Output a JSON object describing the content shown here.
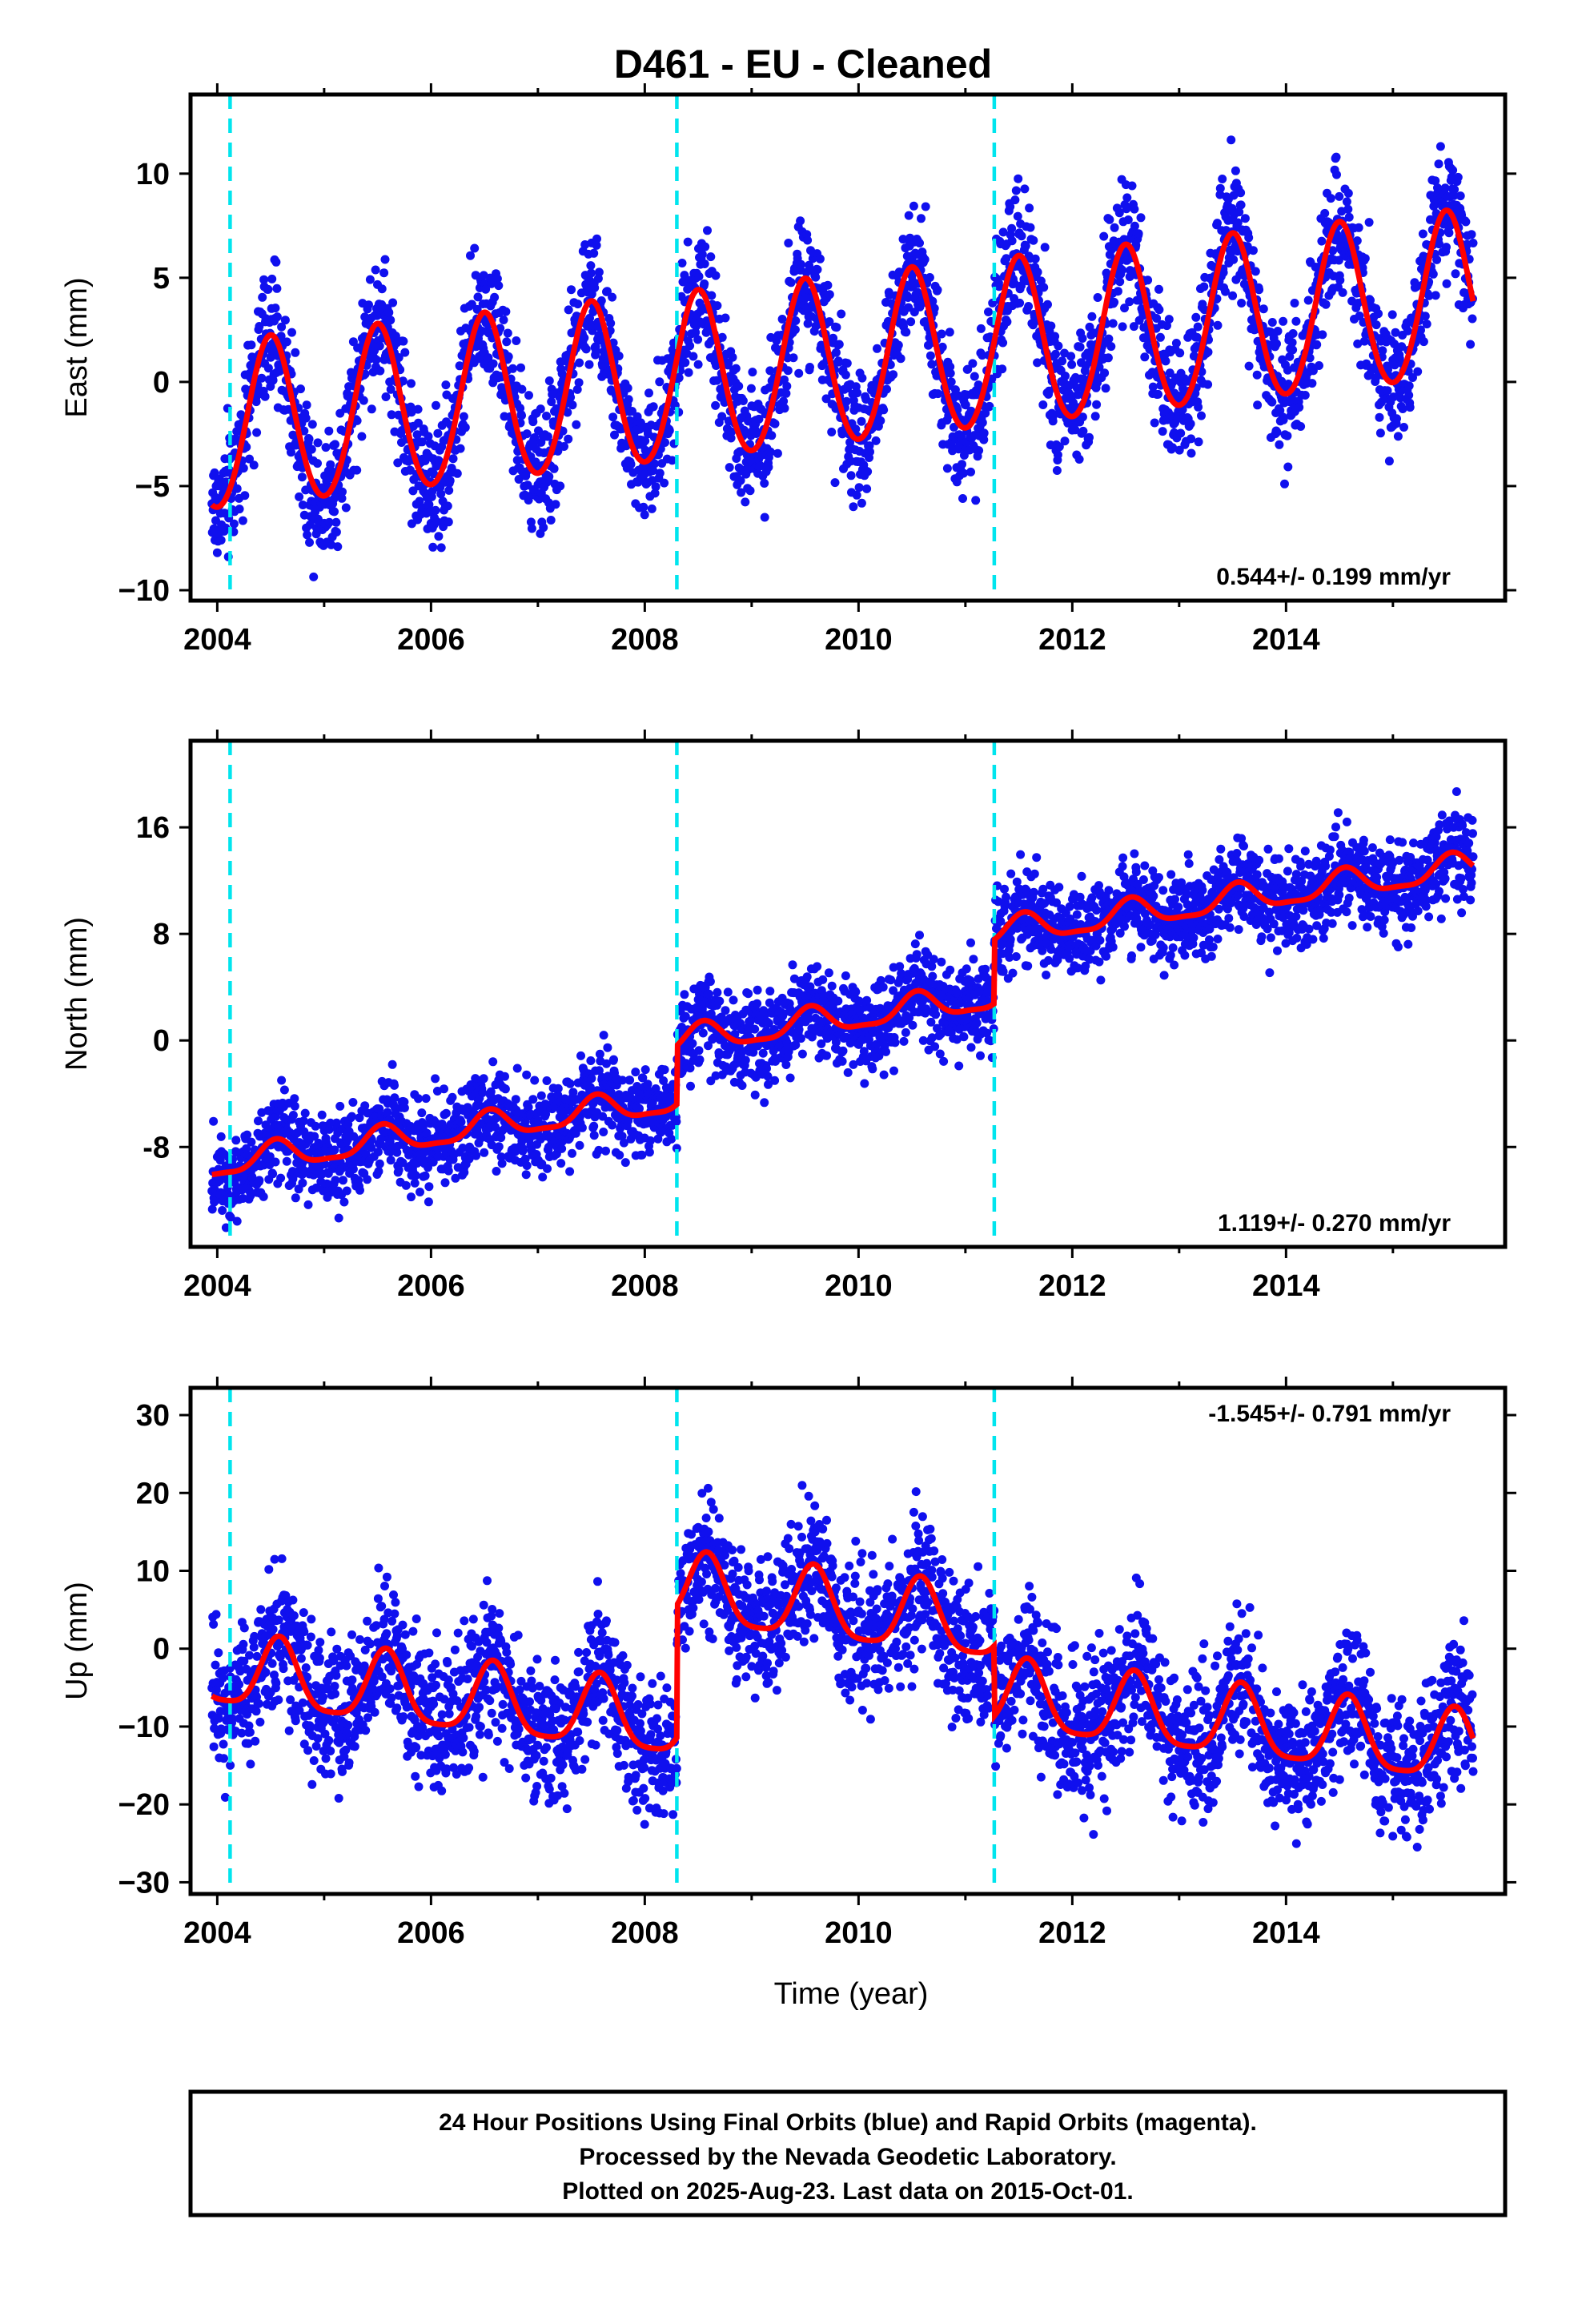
{
  "title": "D461  - EU - Cleaned",
  "xlabel": "Time (year)",
  "colors": {
    "points": "#1010ee",
    "model": "#ff0000",
    "breaks": "#00e5ee",
    "frame": "#000000"
  },
  "footer": {
    "line1": "24 Hour Positions Using Final Orbits (blue) and Rapid Orbits (magenta).",
    "line2": "Processed by the Nevada Geodetic Laboratory.",
    "line3": "Plotted on 2025-Aug-23. Last data on 2015-Oct-01."
  },
  "chart_data": [
    {
      "type": "scatter",
      "name": "east",
      "ylabel": "East (mm)",
      "rate_label": "0.544+/- 0.199 mm/yr",
      "rate_position": "bottom-right",
      "xlim": [
        2003.75,
        2016.05
      ],
      "ylim": [
        -10.5,
        13.8
      ],
      "xticks": [
        2004,
        2006,
        2008,
        2010,
        2012,
        2014
      ],
      "yticks": [
        -10,
        -5,
        0,
        5,
        10
      ],
      "ytick_labels": [
        "−10",
        "−5",
        "0",
        "5",
        "10"
      ],
      "steps": [
        2004.12,
        2008.3,
        2011.27
      ],
      "trend": {
        "x0": 2010.0,
        "a0": 1.0,
        "rate": 0.544,
        "offsets": [
          0,
          0,
          0
        ],
        "annual_amp": 4.0,
        "annual_peak": 0.5,
        "semi_amp": 0.25,
        "scatter": 1.6
      },
      "series": [
        {
          "name": "24 Hour Positions Using Final Orbits (blue)",
          "kind": "points",
          "x_range": [
            2003.95,
            2015.75
          ],
          "count": 3300
        },
        {
          "name": "model",
          "kind": "line"
        }
      ]
    },
    {
      "type": "scatter",
      "name": "north",
      "ylabel": "North (mm)",
      "rate_label": "1.119+/- 0.270 mm/yr",
      "rate_position": "bottom-right",
      "xlim": [
        2003.75,
        2016.05
      ],
      "ylim": [
        -15.5,
        22.5
      ],
      "xticks": [
        2004,
        2006,
        2008,
        2010,
        2012,
        2014
      ],
      "yticks": [
        -8,
        0,
        8,
        16
      ],
      "ytick_labels": [
        "-8",
        "0",
        "8",
        "16"
      ],
      "steps": [
        2004.12,
        2008.3,
        2011.27
      ],
      "trend": {
        "x0": 2004.0,
        "a0": -9.3,
        "rate": 1.119,
        "offsets": [
          0,
          4.4,
          4.8
        ],
        "annual_amp": 1.0,
        "annual_peak": 0.55,
        "semi_amp": 0.3,
        "scatter": 1.7
      },
      "series": [
        {
          "name": "24 Hour Positions Using Final Orbits (blue)",
          "kind": "points",
          "x_range": [
            2003.95,
            2015.75
          ],
          "count": 3300
        },
        {
          "name": "model",
          "kind": "line"
        }
      ]
    },
    {
      "type": "scatter",
      "name": "up",
      "ylabel": "Up (mm)",
      "rate_label": "-1.545+/- 0.791 mm/yr",
      "rate_position": "top-right",
      "xlim": [
        2003.75,
        2016.05
      ],
      "ylim": [
        -31.5,
        33.5
      ],
      "xticks": [
        2004,
        2006,
        2008,
        2010,
        2012,
        2014
      ],
      "yticks": [
        -30,
        -20,
        -10,
        0,
        10,
        20,
        30
      ],
      "ytick_labels": [
        "−30",
        "−20",
        "−10",
        "0",
        "10",
        "20",
        "30"
      ],
      "steps": [
        2004.12,
        2008.3,
        2011.27
      ],
      "trend": {
        "x0": 2004.0,
        "a0": -3.0,
        "rate": -1.545,
        "offsets": [
          0,
          17.0,
          -9.0
        ],
        "annual_amp": 4.5,
        "annual_peak": 0.58,
        "semi_amp": 1.0,
        "scatter": 4.5
      },
      "series": [
        {
          "name": "24 Hour Positions Using Final Orbits (blue)",
          "kind": "points",
          "x_range": [
            2003.95,
            2015.75
          ],
          "count": 3300
        },
        {
          "name": "model",
          "kind": "line"
        }
      ]
    }
  ]
}
